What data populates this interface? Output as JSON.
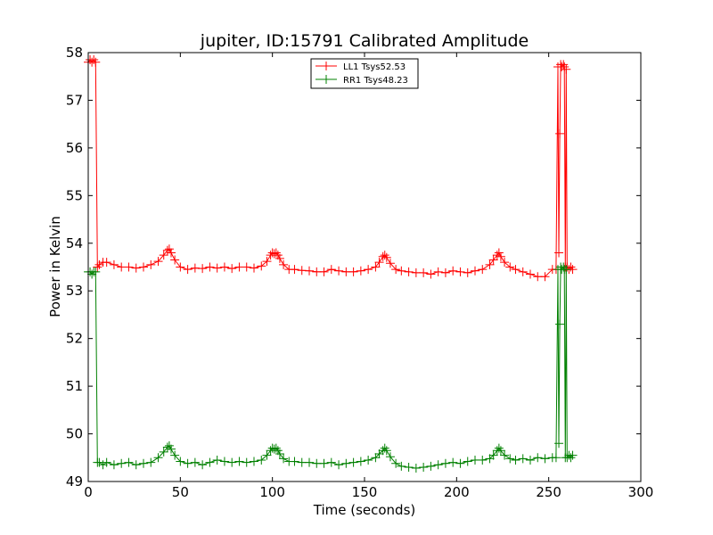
{
  "chart_data": {
    "type": "line",
    "title": "jupiter, ID:15791 Calibrated Amplitude",
    "xlabel": "Time (seconds)",
    "ylabel": "Power in Kelvin",
    "xlim": [
      0,
      300
    ],
    "ylim": [
      49,
      58
    ],
    "xticks": [
      0,
      50,
      100,
      150,
      200,
      250,
      300
    ],
    "yticks": [
      49,
      50,
      51,
      52,
      53,
      54,
      55,
      56,
      57,
      58
    ],
    "grid": false,
    "legend_position": "top-center",
    "marker": "plus",
    "series": [
      {
        "name": "LL1 Tsys52.53",
        "color": "#ff0000",
        "x": [
          0,
          1,
          2,
          3,
          4,
          5,
          6,
          8,
          10,
          14,
          18,
          22,
          26,
          30,
          34,
          38,
          41,
          43,
          44,
          45,
          47,
          50,
          54,
          58,
          62,
          66,
          70,
          74,
          78,
          82,
          86,
          90,
          94,
          97,
          99,
          100,
          101,
          102,
          103,
          104,
          106,
          109,
          112,
          116,
          120,
          124,
          128,
          132,
          136,
          140,
          144,
          148,
          152,
          156,
          158,
          160,
          161,
          162,
          164,
          167,
          170,
          174,
          178,
          182,
          186,
          190,
          194,
          198,
          202,
          206,
          210,
          214,
          218,
          220,
          222,
          223,
          224,
          226,
          229,
          232,
          236,
          240,
          244,
          248,
          252,
          254,
          255,
          255.5,
          256,
          256.5,
          257,
          258,
          258.5,
          259,
          259.5,
          260,
          261,
          262,
          263
        ],
        "values": [
          57.8,
          57.85,
          57.8,
          57.85,
          57.8,
          53.5,
          53.55,
          53.6,
          53.6,
          53.55,
          53.5,
          53.5,
          53.48,
          53.5,
          53.55,
          53.62,
          53.75,
          53.85,
          53.88,
          53.8,
          53.65,
          53.5,
          53.45,
          53.48,
          53.47,
          53.5,
          53.48,
          53.5,
          53.47,
          53.5,
          53.5,
          53.48,
          53.52,
          53.62,
          53.75,
          53.8,
          53.78,
          53.8,
          53.75,
          53.68,
          53.55,
          53.45,
          53.45,
          53.43,
          53.42,
          53.4,
          53.4,
          53.45,
          53.42,
          53.4,
          53.4,
          53.42,
          53.45,
          53.5,
          53.6,
          53.72,
          53.75,
          53.7,
          53.58,
          53.45,
          53.42,
          53.4,
          53.38,
          53.38,
          53.35,
          53.4,
          53.38,
          53.42,
          53.4,
          53.38,
          53.42,
          53.45,
          53.55,
          53.65,
          53.75,
          53.8,
          53.72,
          53.6,
          53.5,
          53.45,
          53.4,
          53.35,
          53.3,
          53.3,
          53.45,
          53.45,
          57.7,
          53.8,
          56.3,
          57.75,
          57.7,
          57.75,
          57.7,
          53.5,
          57.65,
          53.5,
          53.45,
          53.5,
          53.45
        ]
      },
      {
        "name": "RR1 Tsys48.23",
        "color": "#008000",
        "x": [
          0,
          1,
          2,
          3,
          4,
          5,
          6,
          8,
          10,
          14,
          18,
          22,
          26,
          30,
          34,
          38,
          41,
          43,
          44,
          45,
          47,
          50,
          54,
          58,
          62,
          66,
          70,
          74,
          78,
          82,
          86,
          90,
          94,
          97,
          99,
          100,
          101,
          102,
          103,
          104,
          106,
          109,
          112,
          116,
          120,
          124,
          128,
          132,
          136,
          140,
          144,
          148,
          152,
          156,
          158,
          160,
          161,
          162,
          164,
          167,
          170,
          174,
          178,
          182,
          186,
          190,
          194,
          198,
          202,
          206,
          210,
          214,
          218,
          220,
          222,
          223,
          224,
          226,
          229,
          232,
          236,
          240,
          244,
          248,
          252,
          254,
          255,
          255.5,
          256,
          256.5,
          257,
          258,
          258.5,
          259,
          259.5,
          260,
          261,
          262,
          263
        ],
        "values": [
          53.4,
          53.4,
          53.35,
          53.4,
          53.4,
          49.4,
          49.4,
          49.35,
          49.4,
          49.35,
          49.38,
          49.4,
          49.35,
          49.38,
          49.4,
          49.5,
          49.62,
          49.72,
          49.75,
          49.68,
          49.55,
          49.42,
          49.38,
          49.4,
          49.35,
          49.4,
          49.45,
          49.42,
          49.4,
          49.42,
          49.4,
          49.42,
          49.45,
          49.55,
          49.65,
          49.7,
          49.68,
          49.7,
          49.65,
          49.58,
          49.48,
          49.42,
          49.42,
          49.4,
          49.4,
          49.38,
          49.38,
          49.4,
          49.35,
          49.38,
          49.4,
          49.42,
          49.45,
          49.5,
          49.58,
          49.65,
          49.7,
          49.65,
          49.52,
          49.38,
          49.32,
          49.3,
          49.28,
          49.3,
          49.32,
          49.35,
          49.38,
          49.4,
          49.38,
          49.42,
          49.45,
          49.45,
          49.48,
          49.55,
          49.65,
          49.7,
          49.65,
          49.55,
          49.48,
          49.45,
          49.48,
          49.45,
          49.5,
          49.48,
          49.5,
          49.5,
          53.45,
          49.8,
          52.3,
          53.5,
          53.45,
          53.5,
          53.45,
          49.5,
          53.45,
          49.5,
          49.55,
          49.5,
          49.55
        ]
      }
    ]
  }
}
